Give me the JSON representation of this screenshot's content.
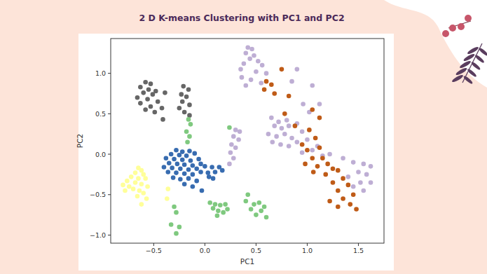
{
  "chart_data": {
    "type": "scatter",
    "title": "2 D K-means Clustering with PC1 and PC2",
    "xlabel": "PC1",
    "ylabel": "PC2",
    "xlim": [
      -0.92,
      1.75
    ],
    "ylim": [
      -1.1,
      1.43
    ],
    "xticks": [
      {
        "value": -0.5,
        "label": "−0.5"
      },
      {
        "value": 0,
        "label": "0.0"
      },
      {
        "value": 0.5,
        "label": "0.5"
      },
      {
        "value": 1,
        "label": "1.0"
      },
      {
        "value": 1.5,
        "label": "1.5"
      }
    ],
    "yticks": [
      {
        "value": -1,
        "label": "−1.0"
      },
      {
        "value": -0.5,
        "label": "−0.5"
      },
      {
        "value": 0,
        "label": "0.0"
      },
      {
        "value": 0.5,
        "label": "0.5"
      },
      {
        "value": 1,
        "label": "1.0"
      }
    ],
    "grid": false,
    "series": [
      {
        "color": "#666666",
        "x": [
          -0.58,
          -0.53,
          -0.63,
          -0.55,
          -0.48,
          -0.6,
          -0.51,
          -0.39,
          -0.66,
          -0.56,
          -0.46,
          -0.63,
          -0.53,
          -0.42,
          -0.58,
          -0.49,
          -0.41,
          -0.21,
          -0.16,
          -0.23,
          -0.18,
          -0.22,
          -0.15,
          -0.25,
          -0.2,
          -0.15
        ],
        "values": [
          0.89,
          0.87,
          0.83,
          0.8,
          0.78,
          0.76,
          0.74,
          0.76,
          0.7,
          0.68,
          0.65,
          0.63,
          0.59,
          0.57,
          0.55,
          0.52,
          0.43,
          0.84,
          0.8,
          0.74,
          0.71,
          0.65,
          0.61,
          0.57,
          0.52,
          0.48
        ]
      },
      {
        "color": "#ffff99",
        "x": [
          -0.65,
          -0.62,
          -0.68,
          -0.6,
          -0.72,
          -0.65,
          -0.58,
          -0.76,
          -0.68,
          -0.62,
          -0.8,
          -0.74,
          -0.56,
          -0.7,
          -0.64,
          -0.78,
          -0.6,
          -0.66,
          -0.57,
          -0.62,
          -0.36,
          -0.37
        ],
        "values": [
          -0.17,
          -0.2,
          -0.23,
          -0.25,
          -0.28,
          -0.3,
          -0.3,
          -0.33,
          -0.35,
          -0.37,
          -0.38,
          -0.4,
          -0.4,
          -0.43,
          -0.45,
          -0.45,
          -0.48,
          -0.52,
          -0.55,
          -0.62,
          -0.43,
          -0.55
        ]
      },
      {
        "color": "#386cb0",
        "x": [
          -0.28,
          -0.22,
          -0.15,
          -0.33,
          -0.25,
          -0.18,
          -0.1,
          -0.38,
          -0.3,
          -0.22,
          -0.14,
          -0.06,
          -0.35,
          -0.27,
          -0.2,
          -0.12,
          -0.04,
          -0.4,
          -0.32,
          -0.24,
          -0.16,
          -0.08,
          0.0,
          0.07,
          0.14,
          -0.36,
          -0.28,
          -0.2,
          -0.12,
          -0.04,
          0.03,
          0.1,
          0.17,
          -0.31,
          -0.24,
          -0.16,
          -0.08,
          0.04,
          -0.2,
          -0.12,
          -0.03,
          0.08
        ],
        "values": [
          0.05,
          0.03,
          0.04,
          0.0,
          -0.01,
          -0.02,
          0.01,
          -0.05,
          -0.06,
          -0.07,
          -0.08,
          -0.06,
          -0.11,
          -0.12,
          -0.13,
          -0.14,
          -0.12,
          -0.16,
          -0.17,
          -0.18,
          -0.19,
          -0.18,
          -0.15,
          -0.16,
          -0.16,
          -0.22,
          -0.23,
          -0.24,
          -0.25,
          -0.22,
          -0.23,
          -0.22,
          -0.2,
          -0.29,
          -0.31,
          -0.3,
          -0.33,
          -0.28,
          -0.37,
          -0.4,
          -0.45,
          -0.3
        ]
      },
      {
        "color": "#7fc97f",
        "x": [
          -0.16,
          -0.14,
          -0.18,
          -0.15,
          -0.17,
          -0.3,
          -0.28,
          -0.33,
          -0.25,
          -0.28,
          0.05,
          0.1,
          0.15,
          0.08,
          0.13,
          0.18,
          0.22,
          0.12,
          0.2,
          0.42,
          0.4,
          0.48,
          0.53,
          0.45,
          0.55,
          0.5,
          0.6,
          0.58,
          0.24
        ],
        "values": [
          0.43,
          0.37,
          0.28,
          0.22,
          0.15,
          -0.65,
          -0.72,
          -0.87,
          -0.9,
          -0.98,
          -0.6,
          -0.62,
          -0.63,
          -0.67,
          -0.7,
          -0.72,
          -0.68,
          -0.76,
          -0.62,
          -0.5,
          -0.58,
          -0.62,
          -0.6,
          -0.68,
          -0.7,
          -0.75,
          -0.78,
          -0.65,
          0.33
        ]
      },
      {
        "color": "#beaed4",
        "x": [
          0.42,
          0.46,
          0.4,
          0.48,
          0.44,
          0.52,
          0.38,
          0.56,
          0.35,
          0.5,
          0.6,
          0.36,
          0.45,
          0.55,
          0.4,
          0.9,
          0.85,
          1.05,
          1.12,
          0.3,
          0.34,
          0.28,
          0.33,
          0.26,
          0.3,
          0.25,
          0.28,
          0.24,
          1.35,
          1.45,
          1.55,
          1.62,
          1.5,
          1.58,
          1.4,
          1.52,
          1.62,
          1.45,
          1.55,
          0.65,
          0.72,
          0.8,
          0.68,
          0.75,
          0.82,
          0.9,
          0.62,
          0.7,
          0.78,
          0.85,
          0.95,
          0.66,
          0.74,
          0.82,
          0.9,
          1.0,
          1.05,
          0.95,
          1.1,
          1.15,
          1.22,
          1.02,
          0.96
        ],
        "values": [
          1.32,
          1.3,
          1.25,
          1.22,
          1.18,
          1.15,
          1.12,
          1.1,
          1.05,
          1.02,
          1.0,
          0.95,
          0.92,
          0.88,
          0.85,
          1.05,
          0.9,
          0.85,
          0.62,
          0.3,
          0.28,
          0.22,
          0.18,
          0.12,
          0.08,
          0.02,
          -0.05,
          -0.12,
          -0.05,
          -0.1,
          -0.12,
          -0.15,
          -0.22,
          -0.25,
          -0.28,
          -0.35,
          -0.35,
          -0.4,
          -0.45,
          0.45,
          0.4,
          0.42,
          0.35,
          0.32,
          0.35,
          0.38,
          0.25,
          0.22,
          0.25,
          0.2,
          0.28,
          0.15,
          0.12,
          0.1,
          0.15,
          0.18,
          0.05,
          0.02,
          0.1,
          -0.02,
          0.0,
          0.52,
          0.62
        ]
      },
      {
        "color": "#bf5b17",
        "x": [
          0.6,
          0.65,
          0.58,
          0.68,
          0.75,
          0.82,
          1.05,
          1.12,
          0.78,
          0.88,
          1.02,
          0.95,
          1.08,
          1.0,
          1.05,
          1.15,
          0.98,
          1.1,
          1.2,
          1.25,
          1.18,
          1.3,
          1.35,
          1.25,
          1.4,
          1.3,
          1.45,
          1.35,
          1.42,
          1.48,
          1.3,
          1.22,
          1.12,
          1.06
        ],
        "values": [
          0.9,
          0.86,
          0.8,
          0.75,
          1.05,
          0.72,
          0.55,
          0.45,
          0.5,
          0.35,
          0.3,
          0.12,
          0.2,
          0.05,
          -0.05,
          -0.05,
          -0.12,
          -0.15,
          -0.12,
          -0.18,
          -0.25,
          -0.2,
          -0.3,
          -0.35,
          -0.38,
          -0.45,
          -0.5,
          -0.55,
          -0.62,
          -0.68,
          -0.65,
          -0.58,
          0.08,
          -0.22
        ]
      }
    ]
  }
}
